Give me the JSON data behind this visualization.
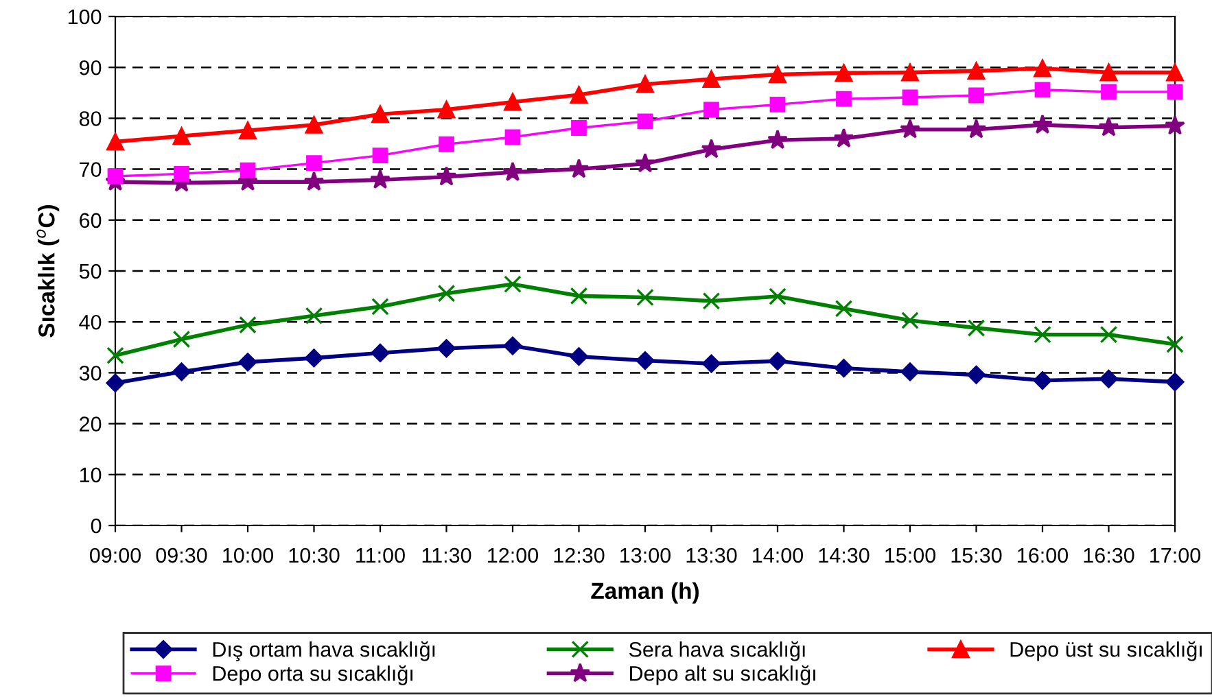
{
  "chart_data": {
    "type": "line",
    "xlabel": "Zaman (h)",
    "ylabel": "Sıcaklık ($^{o}$C)",
    "categories": [
      "09:00",
      "09:30",
      "10:00",
      "10:30",
      "11:00",
      "11:30",
      "12:00",
      "12:30",
      "13:00",
      "13:30",
      "14:00",
      "14:30",
      "15:00",
      "15:30",
      "16:00",
      "16:30",
      "17:00"
    ],
    "ylim": [
      0,
      100
    ],
    "yticks": [
      0,
      10,
      20,
      30,
      40,
      50,
      60,
      70,
      80,
      90,
      100
    ],
    "grid": "y",
    "legend": "bottom",
    "line_style": "solid",
    "series": [
      {
        "name": "Dış ortam hava sıcaklığı",
        "color": "#000080",
        "marker": "diamond",
        "values": [
          28.0,
          30.2,
          32.1,
          32.9,
          33.9,
          34.8,
          35.3,
          33.2,
          32.4,
          31.8,
          32.3,
          30.9,
          30.2,
          29.6,
          28.5,
          28.8,
          28.2
        ]
      },
      {
        "name": "Sera hava sıcaklığı",
        "color": "#008000",
        "marker": "cross",
        "values": [
          33.4,
          36.6,
          39.4,
          41.2,
          43.0,
          45.6,
          47.4,
          45.1,
          44.8,
          44.1,
          45.0,
          42.6,
          40.3,
          38.8,
          37.5,
          37.5,
          35.6
        ]
      },
      {
        "name": "Depo üst su sıcaklığı",
        "color": "#ff0000",
        "marker": "triangle",
        "values": [
          75.4,
          76.5,
          77.6,
          78.7,
          80.8,
          81.7,
          83.2,
          84.6,
          86.7,
          87.7,
          88.6,
          88.9,
          89.0,
          89.3,
          89.8,
          89.0,
          89.0
        ]
      },
      {
        "name": "Depo orta su sıcaklığı",
        "color": "#ff00ff",
        "marker": "square",
        "values": [
          68.6,
          69.1,
          69.8,
          71.2,
          72.7,
          74.9,
          76.3,
          78.1,
          79.4,
          81.7,
          82.7,
          83.8,
          84.1,
          84.5,
          85.6,
          85.2,
          85.2
        ]
      },
      {
        "name": "Depo alt su sıcaklığı",
        "color": "#800080",
        "marker": "star",
        "values": [
          67.5,
          67.3,
          67.5,
          67.5,
          67.9,
          68.5,
          69.4,
          70.0,
          71.1,
          73.9,
          75.7,
          76.0,
          77.8,
          77.8,
          78.7,
          78.2,
          78.5
        ]
      }
    ]
  }
}
